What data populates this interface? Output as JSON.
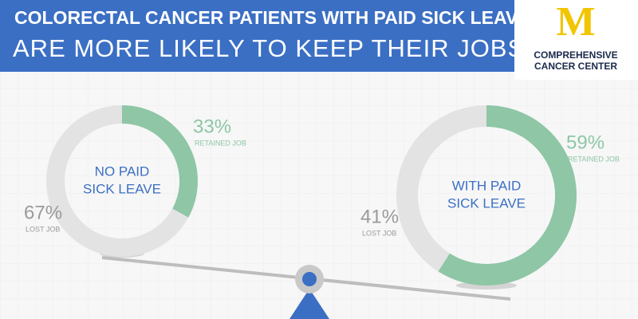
{
  "header": {
    "title_line1": "COLORECTAL CANCER PATIENTS WITH PAID SICK LEAVE",
    "title_line2": "ARE MORE LIKELY TO KEEP THEIR JOBS."
  },
  "logo": {
    "mark": "M",
    "line1": "COMPREHENSIVE",
    "line2": "CANCER CENTER"
  },
  "chart_data": [
    {
      "type": "donut",
      "title": [
        "NO PAID",
        "SICK LEAVE"
      ],
      "categories": [
        "RETAINED JOB",
        "LOST JOB"
      ],
      "values": [
        33,
        67
      ],
      "value_labels": [
        "33%",
        "67%"
      ],
      "colors": [
        "#8ec6a6",
        "#e3e3e3"
      ]
    },
    {
      "type": "donut",
      "title": [
        "WITH PAID",
        "SICK LEAVE"
      ],
      "categories": [
        "RETAINED JOB",
        "LOST JOB"
      ],
      "values": [
        59,
        41
      ],
      "value_labels": [
        "59%",
        "41%"
      ],
      "colors": [
        "#8ec6a6",
        "#e3e3e3"
      ]
    }
  ]
}
